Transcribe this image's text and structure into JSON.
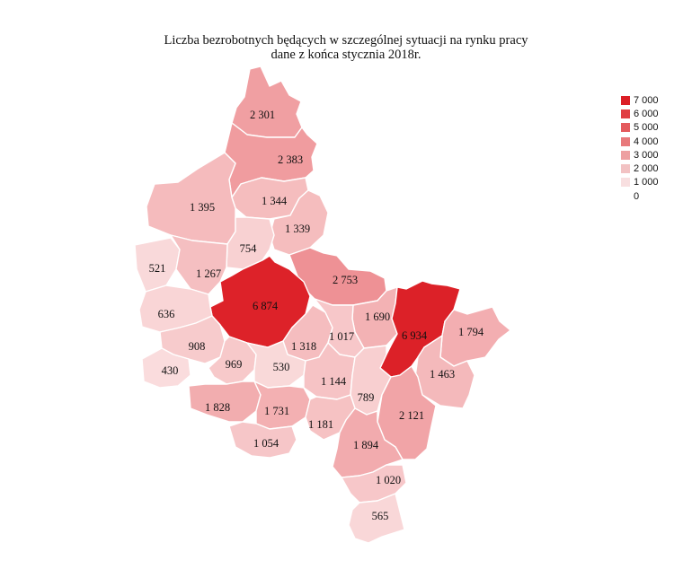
{
  "title": {
    "line1": "Liczba bezrobotnych będących w szczególnej sytuacji na rynku pracy",
    "line2": "dane z końca stycznia 2018r."
  },
  "legend": [
    {
      "label": "7 000",
      "color": "#dc1f26"
    },
    {
      "label": "6 000",
      "color": "#e03e42"
    },
    {
      "label": "5 000",
      "color": "#e45a5d"
    },
    {
      "label": "4 000",
      "color": "#e8797b"
    },
    {
      "label": "3 000",
      "color": "#eda0a1"
    },
    {
      "label": "2 000",
      "color": "#f2c2c3"
    },
    {
      "label": "1 000",
      "color": "#f8dfe0"
    },
    {
      "label": "0",
      "color": "#ffffff"
    }
  ],
  "regions": [
    {
      "id": "r01",
      "value": "2 301",
      "num": 2301
    },
    {
      "id": "r02",
      "value": "2 383",
      "num": 2383
    },
    {
      "id": "r03",
      "value": "1 344",
      "num": 1344
    },
    {
      "id": "r04",
      "value": "1 395",
      "num": 1395
    },
    {
      "id": "r05",
      "value": "1 339",
      "num": 1339
    },
    {
      "id": "r06",
      "value": "754",
      "num": 754
    },
    {
      "id": "r07",
      "value": "521",
      "num": 521
    },
    {
      "id": "r08",
      "value": "1 267",
      "num": 1267
    },
    {
      "id": "r09",
      "value": "2 753",
      "num": 2753
    },
    {
      "id": "r10",
      "value": "6 874",
      "num": 6874
    },
    {
      "id": "r11",
      "value": "636",
      "num": 636
    },
    {
      "id": "r12",
      "value": "1 690",
      "num": 1690
    },
    {
      "id": "r13",
      "value": "6 934",
      "num": 6934
    },
    {
      "id": "r14",
      "value": "1 794",
      "num": 1794
    },
    {
      "id": "r15",
      "value": "908",
      "num": 908
    },
    {
      "id": "r16",
      "value": "1 318",
      "num": 1318
    },
    {
      "id": "r17",
      "value": "1 017",
      "num": 1017
    },
    {
      "id": "r18",
      "value": "430",
      "num": 430
    },
    {
      "id": "r19",
      "value": "969",
      "num": 969
    },
    {
      "id": "r20",
      "value": "530",
      "num": 530
    },
    {
      "id": "r21",
      "value": "1 463",
      "num": 1463
    },
    {
      "id": "r22",
      "value": "1 144",
      "num": 1144
    },
    {
      "id": "r23",
      "value": "789",
      "num": 789
    },
    {
      "id": "r24",
      "value": "1 828",
      "num": 1828
    },
    {
      "id": "r25",
      "value": "1 731",
      "num": 1731
    },
    {
      "id": "r26",
      "value": "2 121",
      "num": 2121
    },
    {
      "id": "r27",
      "value": "1 181",
      "num": 1181
    },
    {
      "id": "r28",
      "value": "1 054",
      "num": 1054
    },
    {
      "id": "r29",
      "value": "1 894",
      "num": 1894
    },
    {
      "id": "r30",
      "value": "1 020",
      "num": 1020
    },
    {
      "id": "r31",
      "value": "565",
      "num": 565
    }
  ]
}
